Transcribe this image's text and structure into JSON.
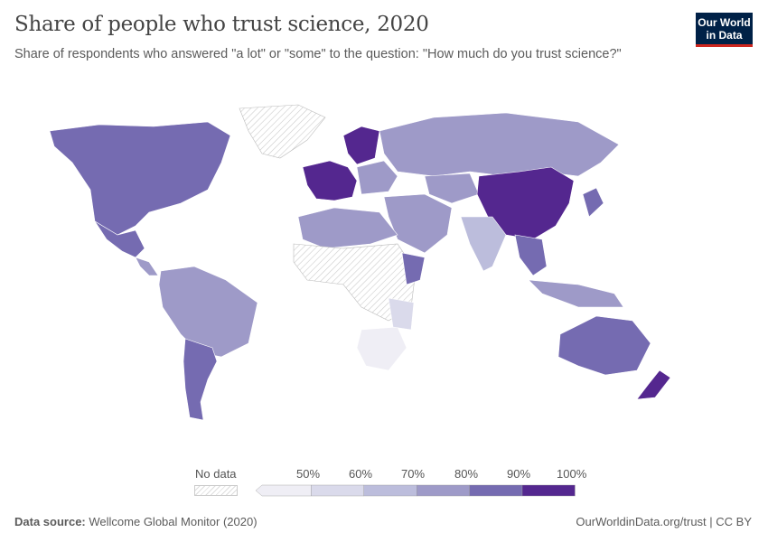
{
  "header": {
    "title": "Share of people who trust science, 2020",
    "subtitle": "Share of respondents who answered \"a lot\" or \"some\" to the question: \"How much do you trust science?\"",
    "logo_text": "Our World in Data"
  },
  "legend": {
    "no_data_label": "No data",
    "ticks": [
      "50%",
      "60%",
      "70%",
      "80%",
      "90%",
      "100%"
    ],
    "bins": [
      {
        "range": "<50%",
        "color": "#efeef5"
      },
      {
        "range": "50-60%",
        "color": "#dadaeb"
      },
      {
        "range": "60-70%",
        "color": "#bcbddc"
      },
      {
        "range": "70-80%",
        "color": "#9e9ac8"
      },
      {
        "range": "80-90%",
        "color": "#756bb1"
      },
      {
        "range": "90-100%",
        "color": "#54278f"
      }
    ],
    "no_data_color": "#eeeeee"
  },
  "footer": {
    "source_label": "Data source:",
    "source": "Wellcome Global Monitor (2020)",
    "link": "OurWorldinData.org/trust | CC BY"
  }
}
